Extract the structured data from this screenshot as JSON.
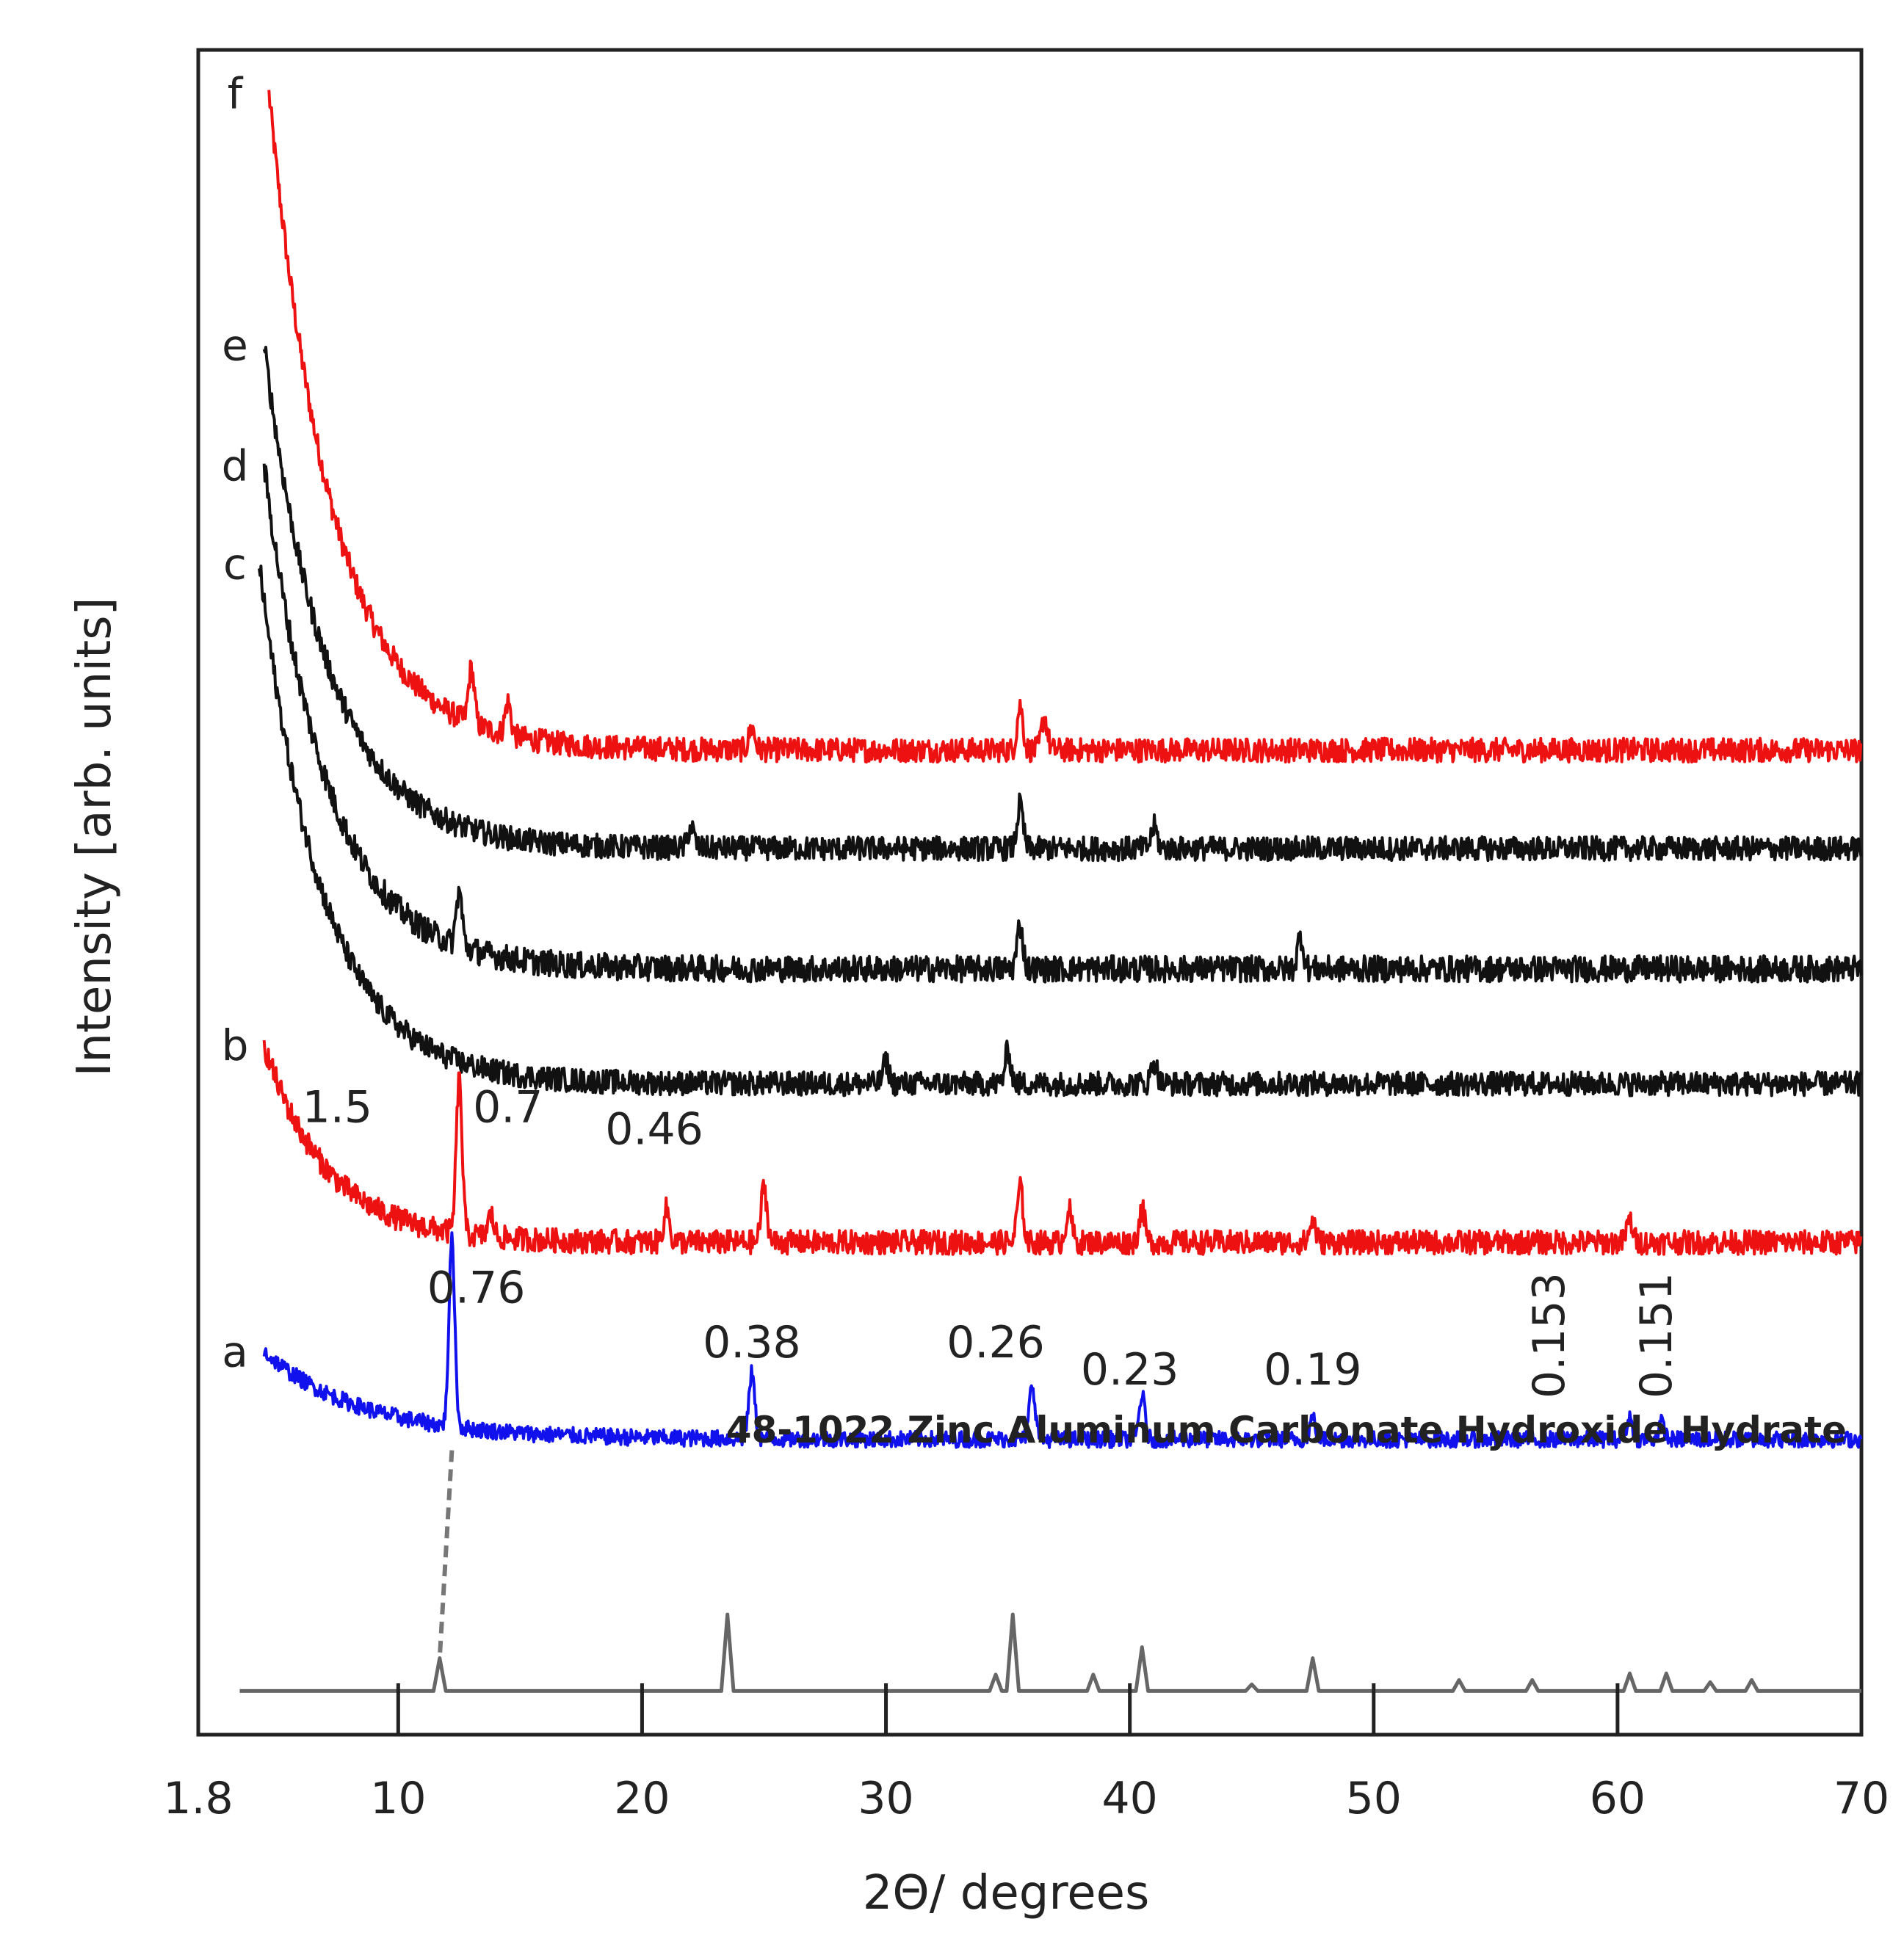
{
  "chart_data": {
    "type": "line",
    "title": "",
    "xlabel": "2Θ/ degrees",
    "ylabel": "Intensity [arb. units]",
    "xlim": [
      1.8,
      70
    ],
    "x_ticks": [
      1.8,
      10,
      20,
      30,
      40,
      50,
      60,
      70
    ],
    "x_tick_labels": [
      "1.8",
      "10",
      "20",
      "30",
      "40",
      "50",
      "60",
      "70"
    ],
    "grid": false,
    "legend": "none",
    "series": [
      {
        "name": "f",
        "color": "#ee1111",
        "baseline": 40,
        "noise": 2.2,
        "start_x": 4.7,
        "start_y": 100,
        "decay": 2.6,
        "peaks": [
          {
            "x": 13.0,
            "h": 5
          },
          {
            "x": 14.5,
            "h": 3
          },
          {
            "x": 24.5,
            "h": 2
          },
          {
            "x": 35.5,
            "h": 4
          },
          {
            "x": 36.5,
            "h": 3
          }
        ]
      },
      {
        "name": "e",
        "color": "#111111",
        "baseline": 31,
        "noise": 2.2,
        "start_x": 4.5,
        "start_y": 77,
        "decay": 2.6,
        "peaks": [
          {
            "x": 22,
            "h": 2
          },
          {
            "x": 35.5,
            "h": 4
          },
          {
            "x": 41,
            "h": 2
          }
        ]
      },
      {
        "name": "d",
        "color": "#111111",
        "baseline": 20,
        "noise": 2.4,
        "start_x": 4.5,
        "start_y": 66,
        "decay": 2.6,
        "peaks": [
          {
            "x": 12.5,
            "h": 5
          },
          {
            "x": 35.5,
            "h": 4
          },
          {
            "x": 47,
            "h": 3
          }
        ]
      },
      {
        "name": "c",
        "color": "#111111",
        "baseline": 9.5,
        "noise": 2.2,
        "start_x": 4.3,
        "start_y": 57,
        "decay": 2.6,
        "peaks": [
          {
            "x": 30,
            "h": 2
          },
          {
            "x": 35,
            "h": 3
          },
          {
            "x": 41,
            "h": 2
          }
        ]
      },
      {
        "name": "b",
        "color": "#ee1111",
        "baseline": -5,
        "noise": 2.2,
        "start_x": 4.5,
        "start_y": 13,
        "decay": 2.6,
        "peaks": [
          {
            "x": 12.5,
            "h": 14
          },
          {
            "x": 13.8,
            "h": 2
          },
          {
            "x": 21,
            "h": 3
          },
          {
            "x": 25,
            "h": 5
          },
          {
            "x": 35.5,
            "h": 5
          },
          {
            "x": 37.5,
            "h": 3
          },
          {
            "x": 40.5,
            "h": 3
          },
          {
            "x": 47.5,
            "h": 2
          },
          {
            "x": 60.5,
            "h": 2
          }
        ]
      },
      {
        "name": "a",
        "color": "#1111ee",
        "baseline": -23,
        "noise": 1.5,
        "start_x": 4.5,
        "start_y": -15,
        "decay": 4.0,
        "peaks": [
          {
            "x": 12.2,
            "h": 17
          },
          {
            "x": 24.5,
            "h": 6
          },
          {
            "x": 36,
            "h": 5
          },
          {
            "x": 40.5,
            "h": 4
          },
          {
            "x": 47.5,
            "h": 2
          },
          {
            "x": 60.5,
            "h": 2
          },
          {
            "x": 61.8,
            "h": 1.5
          }
        ]
      }
    ],
    "reference": {
      "name": "48-1022 Zinc Aluminum Carbonate Hydroxide Hydrate",
      "color": "#666666",
      "baseline": -46,
      "lines": [
        {
          "x": 11.7,
          "h": 3
        },
        {
          "x": 23.5,
          "h": 7
        },
        {
          "x": 34.5,
          "h": 1.5
        },
        {
          "x": 35.2,
          "h": 7
        },
        {
          "x": 38.5,
          "h": 1.5
        },
        {
          "x": 40.5,
          "h": 4
        },
        {
          "x": 45,
          "h": 0.6
        },
        {
          "x": 47.5,
          "h": 3
        },
        {
          "x": 53.5,
          "h": 1
        },
        {
          "x": 56.5,
          "h": 1
        },
        {
          "x": 60.5,
          "h": 1.6
        },
        {
          "x": 62,
          "h": 1.6
        },
        {
          "x": 63.8,
          "h": 0.8
        },
        {
          "x": 65.5,
          "h": 1
        }
      ]
    },
    "annotations": [
      {
        "text": "1.5",
        "x": 7.5,
        "y": 6,
        "vertical": false
      },
      {
        "text": "0.7",
        "x": 14.5,
        "y": 6,
        "vertical": false
      },
      {
        "text": "0.46",
        "x": 20.5,
        "y": 4,
        "vertical": false
      },
      {
        "text": "0.76",
        "x": 13.2,
        "y": -10.5,
        "vertical": false
      },
      {
        "text": "0.38",
        "x": 24.5,
        "y": -15.5,
        "vertical": false
      },
      {
        "text": "0.26",
        "x": 34.5,
        "y": -15.5,
        "vertical": false
      },
      {
        "text": "0.23",
        "x": 40,
        "y": -18,
        "vertical": false
      },
      {
        "text": "0.19",
        "x": 47.5,
        "y": -18,
        "vertical": false
      },
      {
        "text": "0.153",
        "x": 57.8,
        "y": -13.5,
        "vertical": true
      },
      {
        "text": "0.151",
        "x": 62.2,
        "y": -13.5,
        "vertical": true
      }
    ],
    "dashed_link": {
      "x_from": 12.2,
      "y_from": -24,
      "x_to": 11.7,
      "y_to": -43
    },
    "ylim": [
      -50,
      104
    ]
  }
}
